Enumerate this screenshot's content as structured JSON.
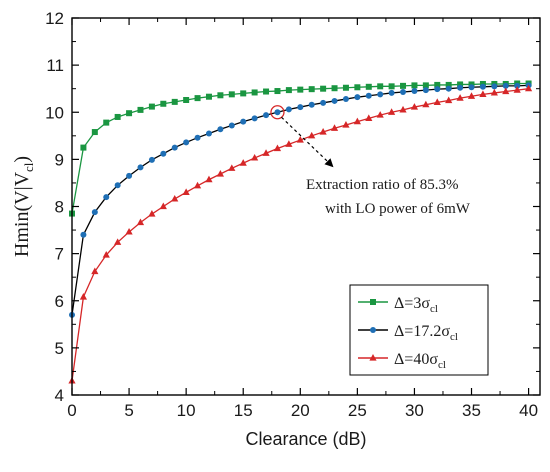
{
  "chart_data": {
    "type": "line",
    "xlabel": "Clearance (dB)",
    "ylabel_main": "Hmin(V|V",
    "ylabel_sub": "cl",
    "ylabel_tail": ")",
    "xlim": [
      0,
      41
    ],
    "ylim": [
      4,
      12
    ],
    "x_ticks": [
      "0",
      "5",
      "10",
      "15",
      "20",
      "25",
      "30",
      "35",
      "40"
    ],
    "y_ticks": [
      "4",
      "5",
      "6",
      "7",
      "8",
      "9",
      "10",
      "11",
      "12"
    ],
    "legend_position": "bottom-right",
    "x": [
      0,
      1,
      2,
      3,
      4,
      5,
      6,
      7,
      8,
      9,
      10,
      11,
      12,
      13,
      14,
      15,
      16,
      17,
      18,
      19,
      20,
      21,
      22,
      23,
      24,
      25,
      26,
      27,
      28,
      29,
      30,
      31,
      32,
      33,
      34,
      35,
      36,
      37,
      38,
      39,
      40
    ],
    "series": [
      {
        "name_main": "Δ=3σ",
        "name_sub": "cl",
        "color": "#1a9641",
        "marker": "square",
        "values": [
          7.85,
          9.25,
          9.58,
          9.78,
          9.9,
          9.98,
          10.05,
          10.12,
          10.18,
          10.22,
          10.26,
          10.3,
          10.33,
          10.36,
          10.38,
          10.4,
          10.42,
          10.44,
          10.45,
          10.47,
          10.48,
          10.49,
          10.5,
          10.51,
          10.52,
          10.53,
          10.54,
          10.55,
          10.55,
          10.56,
          10.57,
          10.57,
          10.58,
          10.58,
          10.59,
          10.59,
          10.6,
          10.6,
          10.6,
          10.61,
          10.61
        ]
      },
      {
        "name_main": "Δ=17.2σ",
        "name_sub": "cl",
        "color": "#1f6fb5",
        "line_color": "#000000",
        "marker": "circle",
        "values": [
          5.7,
          7.4,
          7.88,
          8.2,
          8.45,
          8.65,
          8.83,
          8.99,
          9.12,
          9.25,
          9.36,
          9.46,
          9.55,
          9.64,
          9.72,
          9.8,
          9.87,
          9.94,
          10.0,
          10.06,
          10.11,
          10.16,
          10.2,
          10.24,
          10.28,
          10.32,
          10.35,
          10.38,
          10.41,
          10.43,
          10.45,
          10.47,
          10.49,
          10.5,
          10.52,
          10.53,
          10.54,
          10.55,
          10.56,
          10.56,
          10.57
        ]
      },
      {
        "name_main": "Δ=40σ",
        "name_sub": "cl",
        "color": "#d62728",
        "marker": "triangle",
        "values": [
          4.3,
          6.08,
          6.62,
          6.97,
          7.24,
          7.46,
          7.66,
          7.84,
          8.0,
          8.16,
          8.3,
          8.44,
          8.57,
          8.69,
          8.81,
          8.92,
          9.03,
          9.13,
          9.23,
          9.32,
          9.41,
          9.5,
          9.58,
          9.66,
          9.73,
          9.8,
          9.87,
          9.94,
          10.0,
          10.05,
          10.11,
          10.16,
          10.21,
          10.25,
          10.3,
          10.34,
          10.38,
          10.41,
          10.44,
          10.47,
          10.5
        ]
      }
    ],
    "annotation": {
      "line1": "Extraction ratio of 85.3%",
      "line2": "with LO power of 6mW",
      "point_x": 18,
      "point_y": 10.0
    }
  }
}
